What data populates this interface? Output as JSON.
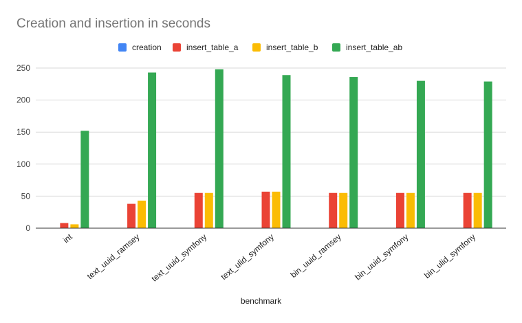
{
  "chart_data": {
    "type": "bar",
    "title": "Creation and insertion in seconds",
    "xlabel": "benchmark",
    "ylabel": "",
    "ylim": [
      0,
      250
    ],
    "yticks": [
      0,
      50,
      100,
      150,
      200,
      250
    ],
    "grid": true,
    "legend": "top",
    "categories": [
      "int",
      "text_uuid_ramsey",
      "text_uuid_symfony",
      "text_ulid_symfony",
      "bin_uuid_ramsey",
      "bin_uuid_symfony",
      "bin_ulid_symfony"
    ],
    "series": [
      {
        "name": "creation",
        "color": "#4285f4",
        "values": [
          0,
          0,
          0,
          0,
          0,
          0,
          0
        ]
      },
      {
        "name": "insert_table_a",
        "color": "#ea4335",
        "values": [
          8,
          38,
          55,
          57,
          55,
          55,
          55
        ]
      },
      {
        "name": "insert_table_b",
        "color": "#fbbc04",
        "values": [
          6,
          43,
          55,
          57,
          55,
          55,
          55
        ]
      },
      {
        "name": "insert_table_ab",
        "color": "#34a853",
        "values": [
          152,
          243,
          248,
          239,
          236,
          230,
          229
        ]
      }
    ]
  }
}
